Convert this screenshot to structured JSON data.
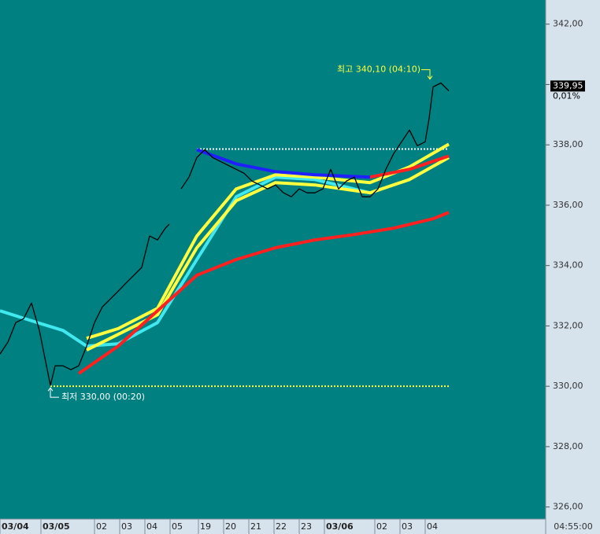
{
  "chart_data": {
    "type": "line",
    "xlim": [
      0,
      173.25
    ],
    "ylim": [
      325.6,
      342.8
    ],
    "yticks": [
      {
        "value": 326,
        "label": "326,00"
      },
      {
        "value": 328,
        "label": "328,00"
      },
      {
        "value": 330,
        "label": "330,00"
      },
      {
        "value": 332,
        "label": "332,00"
      },
      {
        "value": 334,
        "label": "334,00"
      },
      {
        "value": 336,
        "label": "336,00"
      },
      {
        "value": 338,
        "label": "338,00"
      },
      {
        "value": 340,
        "label": "340,00"
      },
      {
        "value": 342,
        "label": "342,00"
      }
    ],
    "xticks": [
      {
        "value": 0,
        "label": "03/04"
      },
      {
        "value": 13,
        "label": "03/05"
      },
      {
        "value": 30,
        "label": "02"
      },
      {
        "value": 38,
        "label": "03"
      },
      {
        "value": 46,
        "label": "04"
      },
      {
        "value": 54,
        "label": "05"
      },
      {
        "value": 63,
        "label": "19"
      },
      {
        "value": 71,
        "label": "20"
      },
      {
        "value": 79,
        "label": "21"
      },
      {
        "value": 87,
        "label": "22"
      },
      {
        "value": 95,
        "label": "23"
      },
      {
        "value": 103,
        "label": "03/06"
      },
      {
        "value": 119,
        "label": "02"
      },
      {
        "value": 127,
        "label": "03"
      },
      {
        "value": 135,
        "label": "04"
      }
    ],
    "time_label": "04:55:00",
    "last_price": {
      "value": 339.95,
      "label": "339,95"
    },
    "change_label": "0,01%",
    "annotations": [
      {
        "text": "최고 340,10 (04:10)",
        "value": 340.1
      },
      {
        "text": "최저 330,00 (00:20)",
        "value": 330.0
      }
    ],
    "hlines": [
      {
        "value": 337.86,
        "color": "#ffffff",
        "x": [
          62.5,
          142.5
        ]
      },
      {
        "value": 330.0,
        "color": "#ffff40",
        "x": [
          16,
          142.5
        ]
      }
    ],
    "series": [
      {
        "color": "#40e8f0",
        "x": [
          0,
          10,
          20,
          27.5,
          37.5,
          50,
          62.5,
          75,
          87.5,
          100,
          117.5
        ],
        "values": [
          332.5,
          332.17,
          331.85,
          331.33,
          331.41,
          332.11,
          334.2,
          336.28,
          336.93,
          336.85,
          336.41
        ]
      },
      {
        "color": "#ffff40",
        "x": [
          27.5,
          37.5,
          50,
          62.5,
          75,
          87.5,
          100,
          117.5,
          130,
          142.5
        ],
        "values": [
          331.59,
          331.91,
          332.58,
          334.98,
          336.54,
          337.01,
          336.93,
          336.75,
          337.27,
          338.02
        ]
      },
      {
        "color": "#ffff40",
        "x": [
          27.5,
          37.5,
          50,
          62.5,
          75,
          87.5,
          100,
          117.5,
          130,
          142.5
        ],
        "values": [
          331.2,
          331.72,
          332.37,
          334.59,
          336.15,
          336.75,
          336.67,
          336.41,
          336.85,
          337.58
        ]
      },
      {
        "color": "#ff2020",
        "x": [
          25,
          37.5,
          50,
          62.5,
          75,
          87.5,
          100,
          112.5,
          125,
          137.5,
          142.5
        ],
        "values": [
          330.42,
          331.33,
          332.5,
          333.68,
          334.2,
          334.59,
          334.85,
          335.03,
          335.24,
          335.55,
          335.76
        ]
      },
      {
        "color": "#ff2020",
        "x": [
          117.5,
          130,
          142.5
        ],
        "values": [
          336.93,
          337.19,
          337.63
        ]
      },
      {
        "color": "#2020ff",
        "x": [
          62.5,
          75,
          87.5,
          100,
          117.5
        ],
        "values": [
          337.84,
          337.37,
          337.11,
          337.01,
          336.93
        ]
      },
      {
        "color": "#000000",
        "x": [
          0,
          2.5,
          5,
          7.5,
          10,
          12.5,
          15,
          16,
          17.5,
          20,
          22.5,
          25,
          27.5,
          30,
          32.5,
          35,
          37.5,
          40,
          42.5,
          45,
          47.5,
          50,
          52.5,
          53.75,
          55,
          57.5,
          60,
          62.5,
          65,
          67.5,
          70,
          72.5,
          75,
          77.5,
          80,
          82.5,
          85,
          87.5,
          90,
          92.5,
          95,
          97.5,
          100,
          102.5,
          105,
          107.5,
          110,
          112.5,
          115,
          117.5,
          120,
          122.5,
          125,
          127.5,
          130,
          132.5,
          135,
          136.25,
          137.5,
          140,
          142.5
        ],
        "values": [
          331.07,
          331.46,
          332.11,
          332.24,
          332.76,
          331.85,
          330.55,
          330.03,
          330.68,
          330.68,
          330.55,
          330.68,
          331.33,
          332.11,
          332.63,
          332.89,
          333.15,
          333.42,
          333.68,
          333.94,
          334.98,
          334.85,
          335.24,
          335.37,
          null,
          336.54,
          336.93,
          337.58,
          337.84,
          337.58,
          337.45,
          337.32,
          337.19,
          337.06,
          336.8,
          336.67,
          336.54,
          336.67,
          336.41,
          336.28,
          336.54,
          336.41,
          336.41,
          336.54,
          337.19,
          336.54,
          336.8,
          336.93,
          336.28,
          336.28,
          336.54,
          337.19,
          337.71,
          338.1,
          338.49,
          337.97,
          338.1,
          338.88,
          339.92,
          340.05,
          339.79
        ]
      }
    ]
  }
}
